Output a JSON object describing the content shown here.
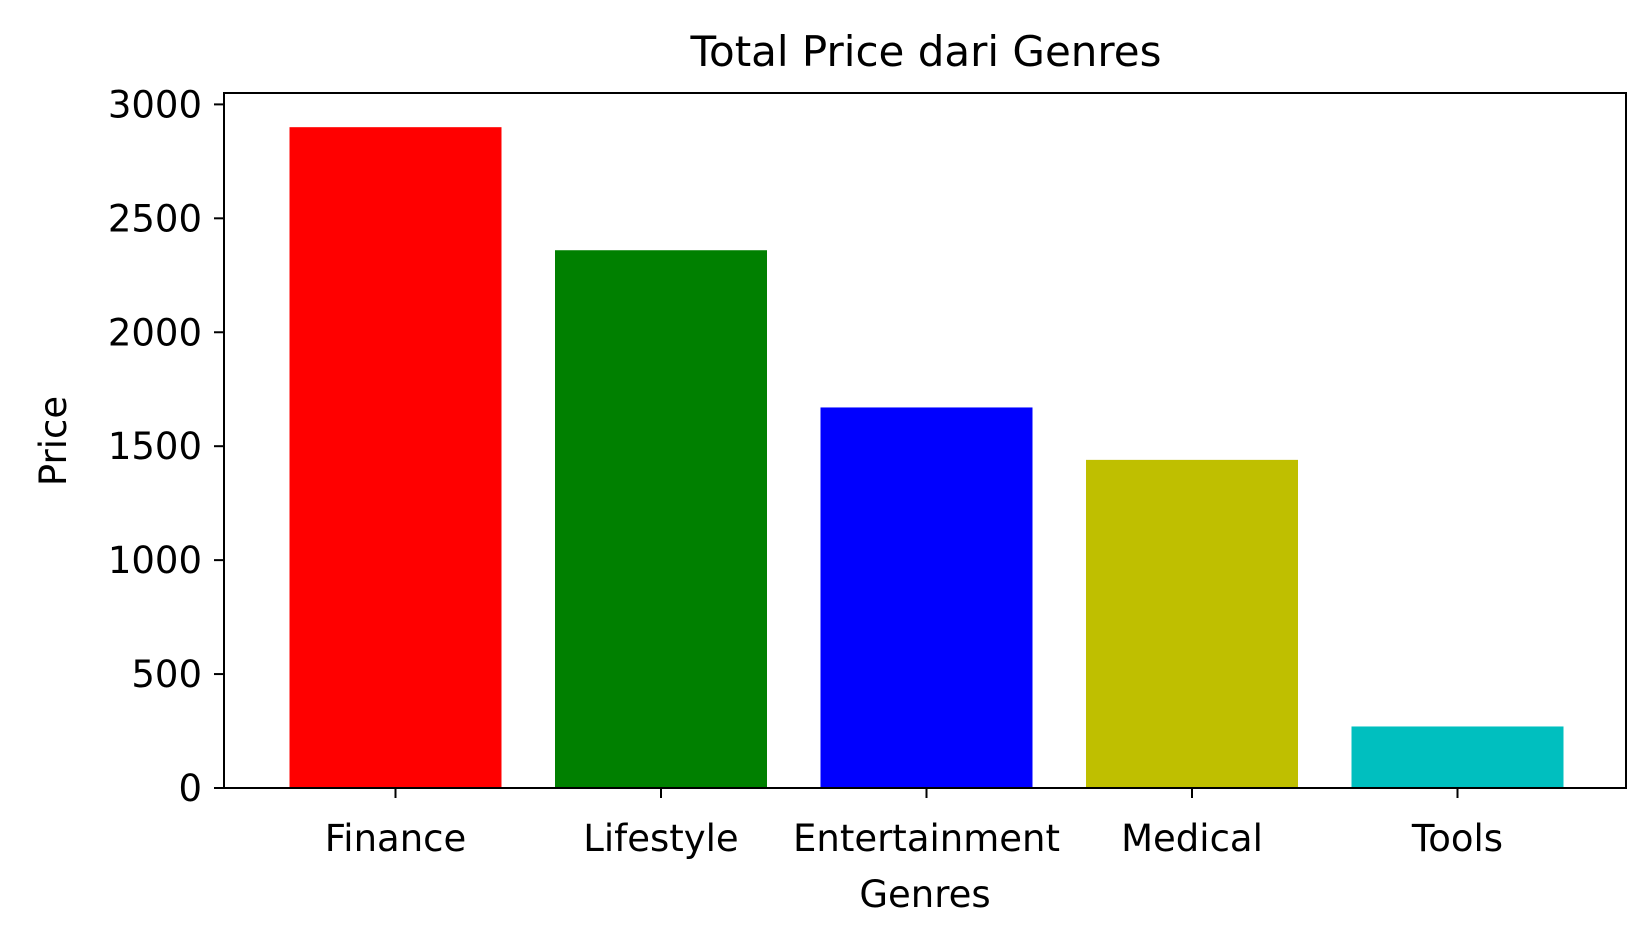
{
  "chart_data": {
    "type": "bar",
    "title": "Total Price dari Genres",
    "xlabel": "Genres",
    "ylabel": "Price",
    "categories": [
      "Finance",
      "Lifestyle",
      "Entertainment",
      "Medical",
      "Tools"
    ],
    "values": [
      2900,
      2360,
      1670,
      1440,
      270
    ],
    "bar_colors": [
      "#ff0000",
      "#008000",
      "#0000ff",
      "#bfbf00",
      "#00bfbf"
    ],
    "ylim": [
      0,
      3050
    ],
    "yticks": [
      0,
      500,
      1000,
      1500,
      2000,
      2500,
      3000
    ],
    "ytick_labels": [
      "0",
      "500",
      "1000",
      "1500",
      "2000",
      "2500",
      "3000"
    ],
    "grid": false,
    "legend": "none"
  }
}
